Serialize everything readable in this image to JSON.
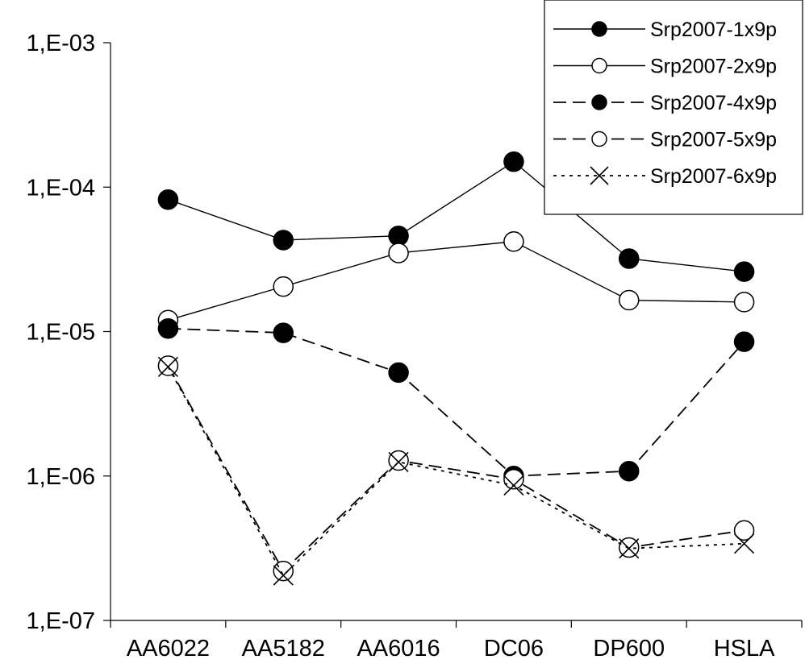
{
  "chart_data": {
    "type": "line",
    "title": "",
    "xlabel": "",
    "ylabel": "",
    "yscale": "log",
    "ylim": [
      1e-07,
      0.001
    ],
    "categories": [
      "AA6022",
      "AA5182",
      "AA6016",
      "DC06",
      "DP600",
      "HSLA"
    ],
    "yticks": [
      1e-07,
      1e-06,
      1e-05,
      0.0001,
      0.001
    ],
    "ytick_labels": [
      "1,E-07",
      "1,E-06",
      "1,E-05",
      "1,E-04",
      "1,E-03"
    ],
    "legend_position": "top-right",
    "grid": false,
    "series": [
      {
        "name": "Srp2007-1x9p",
        "line": "solid",
        "marker": "filled-circle",
        "values": [
          8.2e-05,
          4.3e-05,
          4.6e-05,
          0.00015,
          3.2e-05,
          2.6e-05
        ]
      },
      {
        "name": "Srp2007-2x9p",
        "line": "solid",
        "marker": "open-circle",
        "values": [
          1.2e-05,
          2.05e-05,
          3.5e-05,
          4.2e-05,
          1.65e-05,
          1.6e-05
        ]
      },
      {
        "name": "Srp2007-4x9p",
        "line": "dashed",
        "marker": "filled-circle",
        "values": [
          1.05e-05,
          9.8e-06,
          5.2e-06,
          1e-06,
          1.08e-06,
          8.5e-06
        ]
      },
      {
        "name": "Srp2007-5x9p",
        "line": "dashed",
        "marker": "open-circle",
        "values": [
          5.8e-06,
          2.2e-07,
          1.28e-06,
          9.5e-07,
          3.2e-07,
          4.2e-07
        ]
      },
      {
        "name": "Srp2007-6x9p",
        "line": "dotted",
        "marker": "cross",
        "values": [
          5.7e-06,
          2.05e-07,
          1.25e-06,
          8.6e-07,
          3.15e-07,
          3.4e-07
        ]
      }
    ]
  }
}
